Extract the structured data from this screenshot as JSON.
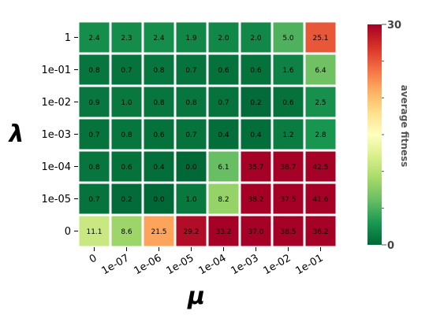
{
  "chart_data": {
    "type": "heatmap",
    "xlabel": "μ",
    "ylabel": "λ",
    "x_categories": [
      "0",
      "1e-07",
      "1e-06",
      "1e-05",
      "1e-04",
      "1e-03",
      "1e-02",
      "1e-01"
    ],
    "y_categories": [
      "1",
      "1e-01",
      "1e-02",
      "1e-03",
      "1e-04",
      "1e-05",
      "0"
    ],
    "values": [
      [
        "2.4",
        "2.3",
        "2.4",
        "1.9",
        "2.0",
        "2.0",
        "5.0",
        "25.1"
      ],
      [
        "0.8",
        "0.7",
        "0.8",
        "0.7",
        "0.6",
        "0.6",
        "1.6",
        "6.4"
      ],
      [
        "0.9",
        "1.0",
        "0.8",
        "0.8",
        "0.7",
        "0.2",
        "0.6",
        "2.5"
      ],
      [
        "0.7",
        "0.8",
        "0.6",
        "0.7",
        "0.4",
        "0.4",
        "1.2",
        "2.8"
      ],
      [
        "0.8",
        "0.6",
        "0.4",
        "0.0",
        "6.1",
        "35.7",
        "38.7",
        "42.5"
      ],
      [
        "0.7",
        "0.2",
        "0.0",
        "1.0",
        "8.2",
        "38.2",
        "37.5",
        "41.6"
      ],
      [
        "11.1",
        "8.6",
        "21.5",
        "29.2",
        "33.2",
        "37.0",
        "38.5",
        "36.2"
      ]
    ],
    "colorbar": {
      "label": "average fitness",
      "min": 0,
      "max": 30,
      "min_label": "0",
      "max_label": "30",
      "colormap": "RdYlGn_r"
    },
    "colors": {
      "dark_green": "#006837",
      "green": "#1a9850",
      "light_green": "#66bd63",
      "yellow_green": "#a6d96a",
      "pale_yellow_green": "#d9ef8b",
      "yellow": "#ffffbf",
      "light_orange": "#fee08b",
      "orange": "#fdae61",
      "red_orange": "#f46d43",
      "red": "#d73027",
      "dark_red": "#a50026"
    }
  }
}
